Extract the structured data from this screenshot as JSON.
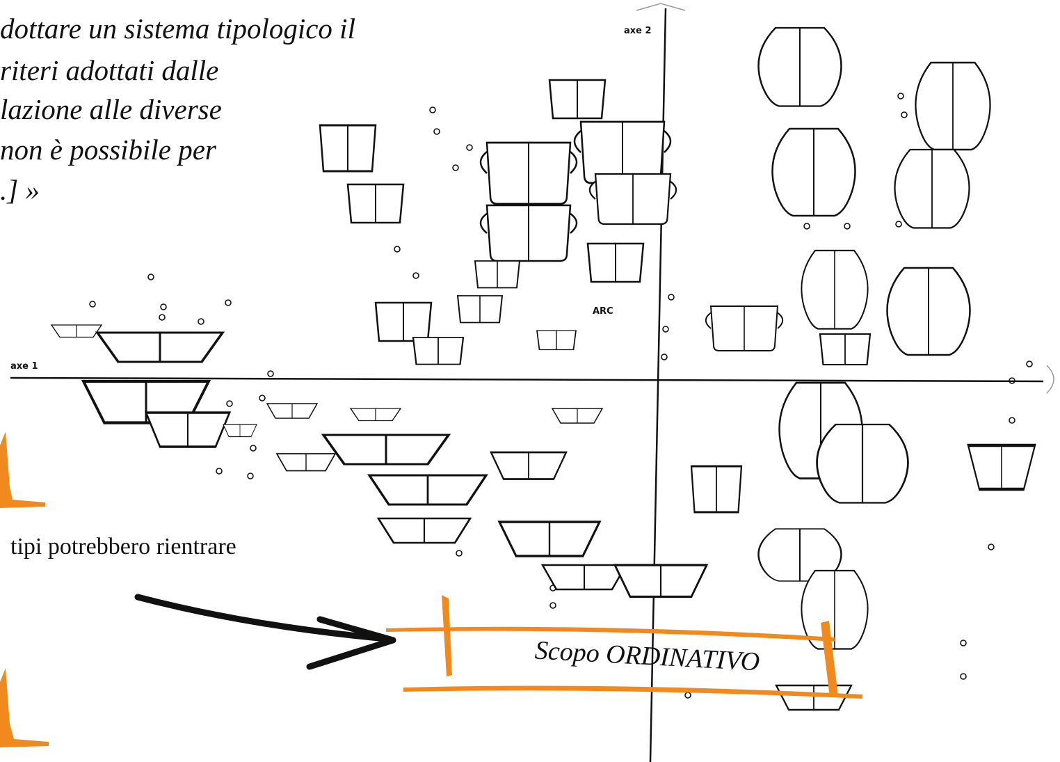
{
  "quote": {
    "lines": [
      "dottare un sistema tipologico il",
      "riteri adottati dalle",
      "lazione alle diverse",
      "non è possibile per",
      ".] »"
    ]
  },
  "side_text": "tipi potrebbero rientrare",
  "banner": "Scopo ORDINATIVO",
  "figure": {
    "axis_vertical": "axe 2",
    "axis_horizontal": "axe 1",
    "label": "ARC"
  }
}
